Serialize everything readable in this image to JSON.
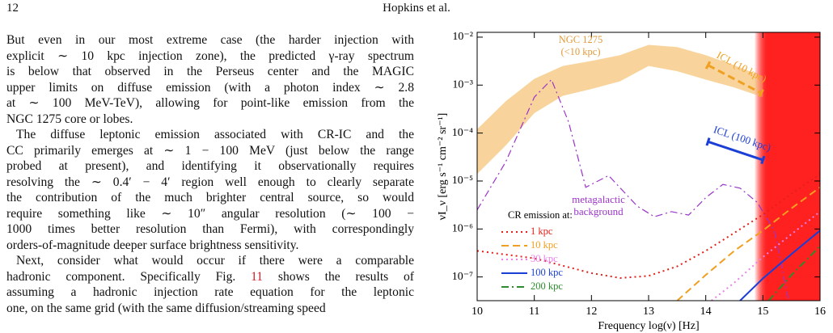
{
  "header": {
    "page_number": "12",
    "running_title": "Hopkins et al."
  },
  "body": {
    "paragraphs": [
      [
        "But even in our most extreme case (the harder injection with",
        "explicit ∼ 10 kpc injection zone), the predicted γ-ray spectrum",
        "is below that observed in the Perseus center and the MAGIC",
        "upper limits on diffuse emission (with a photon index ∼ 2.8",
        "at ∼ 100 MeV-TeV), allowing for point-like emission from the",
        "NGC 1275 core or lobes."
      ],
      [
        "The diffuse leptonic emission associated with CR-IC and the",
        "CC primarily emerges at ∼ 1 − 100 MeV (just below the range",
        "probed at present), and identifying it observationally requires",
        "resolving the ∼ 0.4′ − 4′ region well enough to clearly separate",
        "the contribution of the much brighter central source, so would",
        "require something like ∼ 10″ angular resolution (∼ 100 −",
        "1000 times better resolution than Fermi), with correspondingly",
        "orders-of-magnitude deeper surface brightness sensitivity."
      ],
      [
        "Next, consider what would occur if there were a comparable",
        {
          "before": "hadronic component. Specifically Fig. ",
          "link": "11",
          "after": " shows the results of"
        },
        "assuming a hadronic injection rate equation for the leptonic",
        "one, on the same grid (with the same diffusion/streaming speed"
      ]
    ]
  },
  "chart_data": {
    "type": "line",
    "x_label": "Frequency log(ν) [Hz]",
    "y_label": "νI_ν [erg s⁻¹ cm⁻² sr⁻¹]",
    "log_y": true,
    "xlim": [
      10,
      16
    ],
    "xticks": [
      10,
      11,
      12,
      13,
      14,
      15,
      16
    ],
    "ylim": [
      3.2e-08,
      0.0126
    ],
    "yticks": [
      {
        "value": 1e-07,
        "label": "10⁻⁷"
      },
      {
        "value": 1e-06,
        "label": "10⁻⁶"
      },
      {
        "value": 1e-05,
        "label": "10⁻⁵"
      },
      {
        "value": 0.0001,
        "label": "10⁻⁴"
      },
      {
        "value": 0.001,
        "label": "10⁻³"
      },
      {
        "value": 0.01,
        "label": "10⁻²"
      }
    ],
    "legend_title": "CR emission at:",
    "legend_position": "lower left",
    "series": [
      {
        "name": "1 kpc",
        "color": "#e3201b",
        "style": "dotted",
        "x": [
          10,
          11,
          12,
          12.5,
          13,
          13.5,
          14,
          14.5,
          15,
          15.5,
          16
        ],
        "values": [
          3.5e-07,
          2.45e-07,
          1.2e-07,
          9.5e-08,
          1.05e-07,
          1.66e-07,
          3.5e-07,
          8.3e-07,
          2e-06,
          5.4e-06,
          1.4e-05
        ]
      },
      {
        "name": "10 kpc",
        "color": "#f0a020",
        "style": "dashed",
        "x": [
          13.5,
          14,
          14.5,
          15,
          15.5,
          16
        ],
        "values": [
          3.2e-08,
          1.1e-07,
          3.5e-07,
          9.3e-07,
          2.7e-06,
          7.4e-06
        ]
      },
      {
        "name": "30 kpc",
        "color": "#ea80e8",
        "style": "dotted",
        "x": [
          14.1,
          14.5,
          15,
          15.5,
          16
        ],
        "values": [
          3.2e-08,
          7.6e-08,
          2.6e-07,
          7.8e-07,
          2.3e-06
        ]
      },
      {
        "name": "100 kpc",
        "color": "#1b3fd6",
        "style": "solid",
        "x": [
          14.6,
          15,
          15.5,
          16
        ],
        "values": [
          3.2e-08,
          9.3e-08,
          3e-07,
          9.3e-07
        ]
      },
      {
        "name": "200 kpc",
        "color": "#2e8b2e",
        "style": "dashdot",
        "x": [
          15.1,
          15.5,
          16
        ],
        "values": [
          3.2e-08,
          1.1e-07,
          4.4e-07
        ]
      }
    ],
    "band": {
      "label_lines": [
        "NGC 1275",
        "(<10 kpc)"
      ],
      "color": "#f8d49c",
      "label_color": "#e39a3a",
      "x": [
        10,
        10.5,
        11,
        11.5,
        12,
        12.5,
        13,
        13.5,
        14,
        14.5,
        15
      ],
      "upper": [
        0.00012,
        0.00046,
        0.00135,
        0.0025,
        0.0032,
        0.0042,
        0.0069,
        0.0062,
        0.0042,
        0.0026,
        0.0015
      ],
      "lower": [
        1.4e-05,
        5.5e-05,
        0.00026,
        0.0006,
        0.00083,
        0.0012,
        0.0025,
        0.00195,
        0.0013,
        0.00089,
        0.00056
      ]
    },
    "background_curve": {
      "label_lines": [
        "metagalactic",
        "background"
      ],
      "color": "#9b35c9",
      "style": "dashdot",
      "x": [
        10,
        10.5,
        11,
        11.3,
        11.6,
        11.9,
        12.3,
        12.8,
        13.1,
        13.4,
        13.7,
        14,
        14.3,
        14.6,
        14.9,
        15.2,
        15.45
      ],
      "values": [
        2.5e-06,
        2.5e-05,
        0.00056,
        0.0013,
        0.00017,
        7.4e-06,
        1.3e-05,
        3e-06,
        1.8e-06,
        2.3e-06,
        1.95e-06,
        4.5e-06,
        8.5e-06,
        7.1e-06,
        3.6e-06,
        9.3e-07,
        3.2e-08
      ]
    },
    "segments": [
      {
        "name": "ICL (10 kpc)",
        "color": "#f0a020",
        "style": "dashed",
        "x": [
          14.04,
          14.97
        ],
        "values": [
          0.0026,
          0.00068
        ]
      },
      {
        "name": "ICL (100 kpc)",
        "color": "#1b3fd6",
        "style": "solid",
        "x": [
          14.04,
          15.0
        ],
        "values": [
          6.6e-05,
          2.75e-05
        ]
      }
    ],
    "shaded_region": {
      "x": [
        14.85,
        16
      ],
      "color": "#ff2020"
    }
  }
}
